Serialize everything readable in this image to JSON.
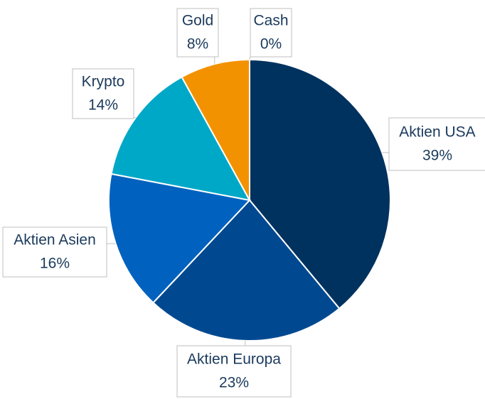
{
  "chart_data": {
    "type": "pie",
    "categories": [
      "Aktien USA",
      "Aktien Europa",
      "Aktien Asien",
      "Krypto",
      "Gold",
      "Cash"
    ],
    "values": [
      39,
      23,
      16,
      14,
      8,
      0
    ],
    "value_labels": [
      "39%",
      "23%",
      "16%",
      "14%",
      "8%",
      "0%"
    ],
    "colors": [
      "#00325f",
      "#004990",
      "#0062be",
      "#00a8c8",
      "#f39200",
      "#7f7f7f"
    ]
  }
}
